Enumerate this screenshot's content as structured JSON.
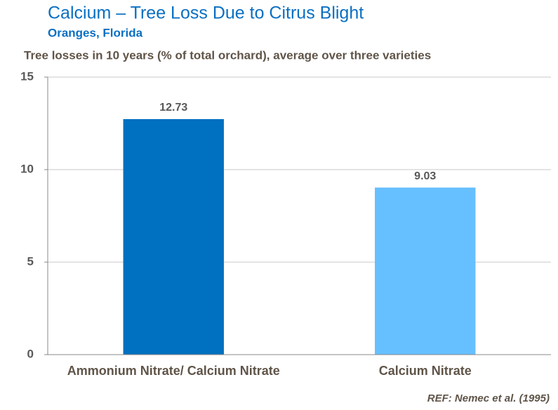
{
  "chart_data": {
    "type": "bar",
    "title": "Calcium – Tree Loss Due to Citrus Blight",
    "subtitle": "Oranges, Florida",
    "y_label": "Tree losses in 10 years (% of total orchard), average over three varieties",
    "categories": [
      "Ammonium Nitrate/ Calcium Nitrate",
      "Calcium Nitrate"
    ],
    "values": [
      12.73,
      9.03
    ],
    "colors": [
      "#0070c0",
      "#66bfff"
    ],
    "ylim": [
      0,
      15
    ],
    "yticks": [
      0,
      5,
      10,
      15
    ],
    "grid": true,
    "note": "REF: Nemec et al. (1995)"
  }
}
